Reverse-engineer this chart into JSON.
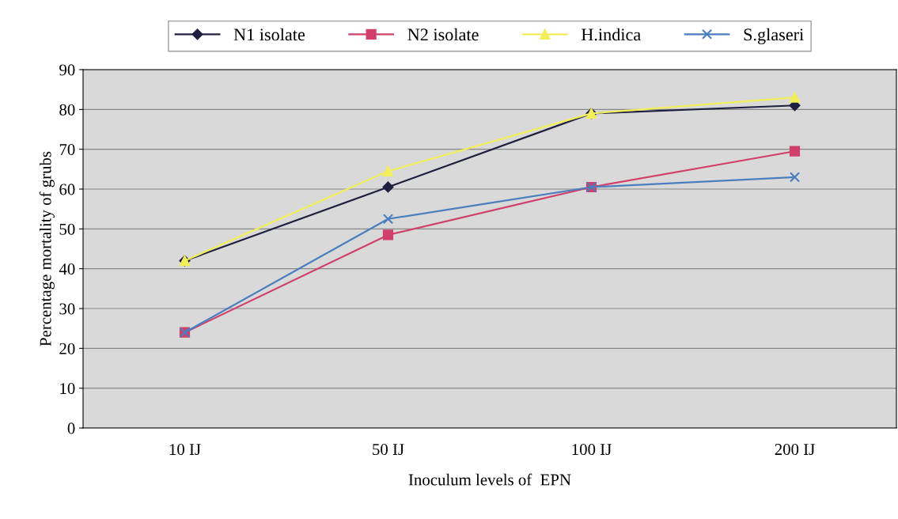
{
  "chart_data": {
    "type": "line",
    "xlabel": "Inoculum levels of  EPN",
    "ylabel": "Percentage mortality of grubs",
    "categories": [
      "10 IJ",
      "50 IJ",
      "100 IJ",
      "200 IJ"
    ],
    "series": [
      {
        "name": "N1 isolate",
        "color": "#1f1f3f",
        "marker": "diamond",
        "values": [
          42,
          60.5,
          79,
          81
        ]
      },
      {
        "name": "N2 isolate",
        "color": "#d0406a",
        "marker": "square",
        "values": [
          24,
          48.5,
          60.5,
          69.5
        ]
      },
      {
        "name": "H.indica",
        "color": "#f2ee5a",
        "marker": "triangle",
        "values": [
          42,
          64.5,
          79,
          83
        ]
      },
      {
        "name": "S.glaseri",
        "color": "#4a7ebf",
        "marker": "cross",
        "values": [
          24,
          52.5,
          60.5,
          63
        ]
      }
    ],
    "ylim": [
      0,
      90
    ],
    "yticks": [
      0,
      10,
      20,
      30,
      40,
      50,
      60,
      70,
      80,
      90
    ],
    "grid": "y",
    "legend": "top"
  }
}
